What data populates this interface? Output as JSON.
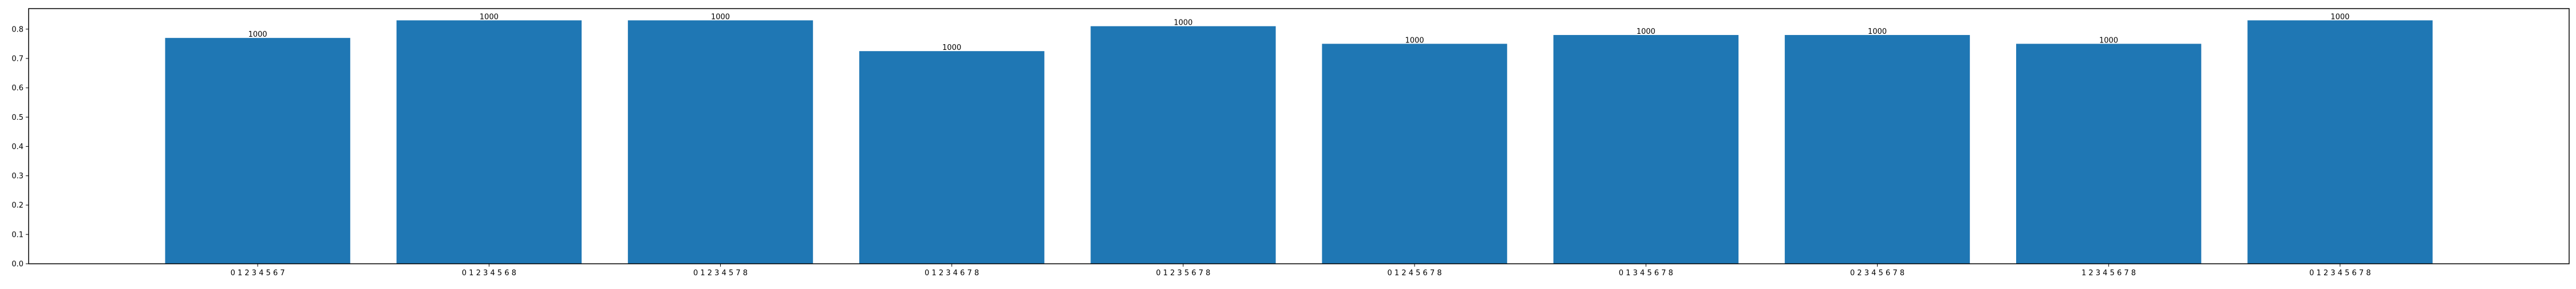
{
  "chart_data": {
    "type": "bar",
    "title": "",
    "xlabel": "",
    "ylabel": "",
    "categories": [
      "0 1 2 3 4 5 6 7",
      "0 1 2 3 4 5 6 8",
      "0 1 2 3 4 5 7 8",
      "0 1 2 3 4 6 7 8",
      "0 1 2 3 5 6 7 8",
      "0 1 2 4 5 6 7 8",
      "0 1 3 4 5 6 7 8",
      "0 2 3 4 5 6 7 8",
      "1 2 3 4 5 6 7 8",
      "0 1 2 3 4 5 6 7 8"
    ],
    "values": [
      0.77,
      0.83,
      0.83,
      0.725,
      0.81,
      0.75,
      0.78,
      0.78,
      0.75,
      0.83
    ],
    "bar_labels": [
      "1000",
      "1000",
      "1000",
      "1000",
      "1000",
      "1000",
      "1000",
      "1000",
      "1000",
      "1000"
    ],
    "ylim": [
      0,
      0.87
    ],
    "yticks": [
      "0.0",
      "0.1",
      "0.2",
      "0.3",
      "0.4",
      "0.5",
      "0.6",
      "0.7",
      "0.8"
    ],
    "grid": false,
    "legend": "none",
    "bar_color": "#1f77b4",
    "axis_color": "#000000"
  }
}
